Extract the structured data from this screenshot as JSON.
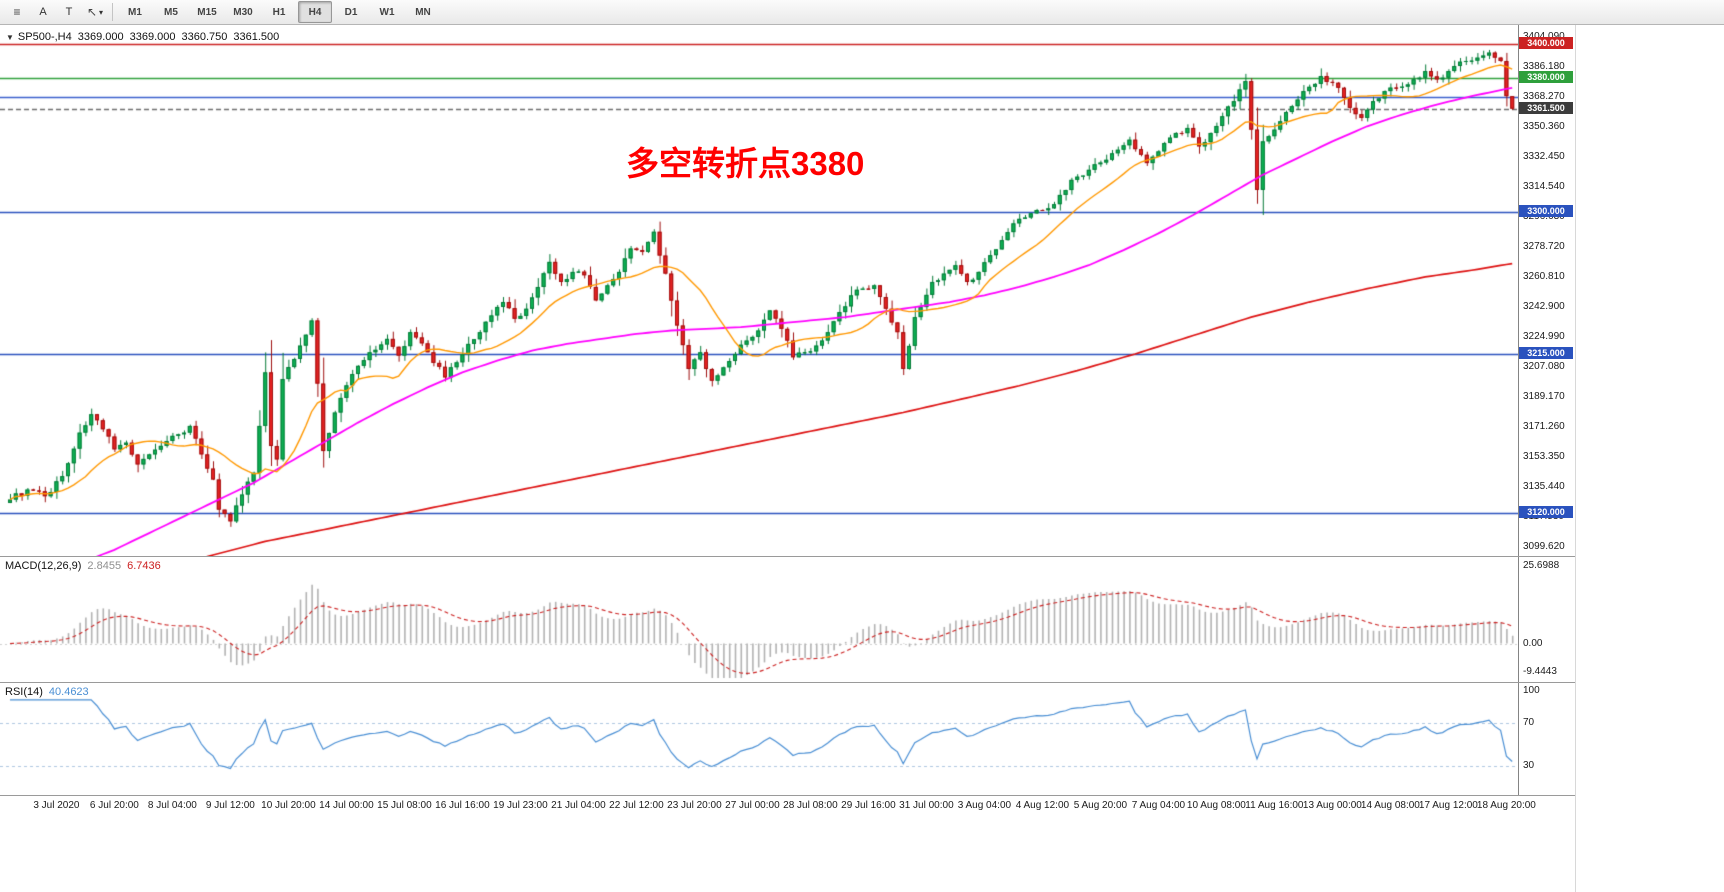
{
  "toolbar": {
    "icons": {
      "menu": "≡",
      "cursor": "↖",
      "caret": "▾"
    },
    "tools": [
      {
        "label": "A"
      },
      {
        "label": "T"
      }
    ],
    "timeframes": [
      {
        "label": "M1"
      },
      {
        "label": "M5"
      },
      {
        "label": "M15"
      },
      {
        "label": "M30"
      },
      {
        "label": "H1"
      },
      {
        "label": "H4",
        "active": true
      },
      {
        "label": "D1"
      },
      {
        "label": "W1"
      },
      {
        "label": "MN"
      }
    ]
  },
  "quote": {
    "collapse_icon": "▼",
    "symbol": "SP500-,H4",
    "open": "3369.000",
    "high": "3369.000",
    "low": "3360.750",
    "close": "3361.500"
  },
  "annotation": {
    "text": "多空转折点3380",
    "color": "#ff0000"
  },
  "chart_data": {
    "type": "candlestick",
    "symbol": "SP500-",
    "timeframe": "H4",
    "candle_count": 260,
    "colors": {
      "up": "#0db254",
      "up_border": "#067a38",
      "down": "#e62222",
      "down_border": "#9e0f0f",
      "ma_fast": "#ff9800",
      "ma_mid": "#ff00ff",
      "ma_slow": "#dd1111"
    },
    "y_axis": {
      "top_price": 3411.5,
      "bottom_price": 3094.3,
      "tick_prices": [
        3404.09,
        3386.18,
        3368.27,
        3350.36,
        3332.45,
        3314.54,
        3296.63,
        3278.72,
        3260.81,
        3242.9,
        3224.99,
        3207.08,
        3189.17,
        3171.26,
        3153.35,
        3135.44,
        3117.53,
        3099.62
      ],
      "tick_labels": [
        "3404.090",
        "3386.180",
        "3368.270",
        "3350.360",
        "3332.450",
        "3314.540",
        "3296.630",
        "3278.720",
        "3260.810",
        "3242.900",
        "3224.990",
        "3207.080",
        "3189.170",
        "3171.260",
        "3153.350",
        "3135.440",
        "3117.530",
        "3099.620"
      ]
    },
    "x_axis": {
      "indices": [
        8,
        18,
        28,
        38,
        48,
        58,
        68,
        78,
        88,
        98,
        108,
        118,
        128,
        138,
        148,
        158,
        168,
        178,
        188,
        198,
        208,
        218,
        228,
        238,
        248,
        258
      ],
      "labels": [
        "3 Jul 2020",
        "6 Jul 20:00",
        "8 Jul 04:00",
        "9 Jul 12:00",
        "10 Jul 20:00",
        "14 Jul 00:00",
        "15 Jul 08:00",
        "16 Jul 16:00",
        "19 Jul 23:00",
        "21 Jul 04:00",
        "22 Jul 12:00",
        "23 Jul 20:00",
        "27 Jul 00:00",
        "28 Jul 08:00",
        "29 Jul 16:00",
        "31 Jul 00:00",
        "3 Aug 04:00",
        "4 Aug 12:00",
        "5 Aug 20:00",
        "7 Aug 04:00",
        "10 Aug 08:00",
        "11 Aug 16:00",
        "13 Aug 00:00",
        "14 Aug 08:00",
        "17 Aug 12:00",
        "18 Aug 20:00"
      ]
    },
    "hlines": [
      {
        "price": 3400.0,
        "color": "#cc2222",
        "label": "3400.000",
        "label_bg": "#cc2222",
        "style": "solid"
      },
      {
        "price": 3380.0,
        "color": "#2fa03c",
        "label": "3380.000",
        "label_bg": "#2fa03c",
        "style": "solid"
      },
      {
        "price": 3368.5,
        "color": "#3a5fcd",
        "label": null,
        "label_bg": null,
        "style": "solid"
      },
      {
        "price": 3361.5,
        "color": "#6e6e6e",
        "label": "3361.500",
        "label_bg": "#3c3c3c",
        "style": "dash"
      },
      {
        "price": 3300.0,
        "color": "#2a52be",
        "label": "3300.000",
        "label_bg": "#2a52be",
        "style": "solid"
      },
      {
        "price": 3215.0,
        "color": "#2a52be",
        "label": "3215.000",
        "label_bg": "#2a52be",
        "style": "solid"
      },
      {
        "price": 3120.0,
        "color": "#2a52be",
        "label": "3120.000",
        "label_bg": "#2a52be",
        "style": "solid"
      }
    ],
    "close_anchors": [
      [
        0,
        3128
      ],
      [
        3,
        3134
      ],
      [
        6,
        3130
      ],
      [
        9,
        3142
      ],
      [
        12,
        3168
      ],
      [
        14,
        3179
      ],
      [
        16,
        3170
      ],
      [
        18,
        3158
      ],
      [
        20,
        3162
      ],
      [
        22,
        3149
      ],
      [
        24,
        3155
      ],
      [
        27,
        3163
      ],
      [
        29,
        3167
      ],
      [
        31,
        3172
      ],
      [
        33,
        3155
      ],
      [
        35,
        3140
      ],
      [
        36,
        3122
      ],
      [
        38,
        3115
      ],
      [
        40,
        3131
      ],
      [
        42,
        3144
      ],
      [
        43,
        3172
      ],
      [
        44,
        3204
      ],
      [
        45,
        3160
      ],
      [
        46,
        3152
      ],
      [
        47,
        3200
      ],
      [
        49,
        3212
      ],
      [
        52,
        3235
      ],
      [
        54,
        3157
      ],
      [
        56,
        3180
      ],
      [
        59,
        3203
      ],
      [
        62,
        3216
      ],
      [
        65,
        3224
      ],
      [
        67,
        3214
      ],
      [
        69,
        3228
      ],
      [
        72,
        3216
      ],
      [
        75,
        3201
      ],
      [
        77,
        3210
      ],
      [
        79,
        3221
      ],
      [
        81,
        3228
      ],
      [
        83,
        3238
      ],
      [
        85,
        3246
      ],
      [
        87,
        3236
      ],
      [
        89,
        3242
      ],
      [
        91,
        3255
      ],
      [
        93,
        3270
      ],
      [
        95,
        3258
      ],
      [
        97,
        3264
      ],
      [
        99,
        3262
      ],
      [
        101,
        3247
      ],
      [
        103,
        3256
      ],
      [
        105,
        3264
      ],
      [
        107,
        3278
      ],
      [
        109,
        3276
      ],
      [
        111,
        3288
      ],
      [
        113,
        3263
      ],
      [
        115,
        3232
      ],
      [
        117,
        3206
      ],
      [
        119,
        3216
      ],
      [
        121,
        3199
      ],
      [
        123,
        3207
      ],
      [
        125,
        3215
      ],
      [
        127,
        3223
      ],
      [
        129,
        3229
      ],
      [
        131,
        3241
      ],
      [
        133,
        3230
      ],
      [
        135,
        3213
      ],
      [
        137,
        3216
      ],
      [
        139,
        3220
      ],
      [
        141,
        3228
      ],
      [
        143,
        3240
      ],
      [
        145,
        3250
      ],
      [
        147,
        3254
      ],
      [
        149,
        3256
      ],
      [
        151,
        3242
      ],
      [
        153,
        3228
      ],
      [
        154,
        3206
      ],
      [
        156,
        3237
      ],
      [
        159,
        3258
      ],
      [
        161,
        3263
      ],
      [
        163,
        3268
      ],
      [
        165,
        3258
      ],
      [
        167,
        3264
      ],
      [
        169,
        3274
      ],
      [
        171,
        3283
      ],
      [
        173,
        3293
      ],
      [
        176,
        3299
      ],
      [
        179,
        3302
      ],
      [
        181,
        3310
      ],
      [
        183,
        3319
      ],
      [
        186,
        3325
      ],
      [
        189,
        3331
      ],
      [
        191,
        3337
      ],
      [
        193,
        3343
      ],
      [
        195,
        3334
      ],
      [
        196,
        3329
      ],
      [
        198,
        3336
      ],
      [
        199,
        3341
      ],
      [
        201,
        3347
      ],
      [
        203,
        3350
      ],
      [
        205,
        3339
      ],
      [
        207,
        3347
      ],
      [
        209,
        3357
      ],
      [
        211,
        3366
      ],
      [
        212,
        3373
      ],
      [
        213,
        3378
      ],
      [
        214,
        3349
      ],
      [
        215,
        3313
      ],
      [
        216,
        3342
      ],
      [
        218,
        3349
      ],
      [
        219,
        3354
      ],
      [
        221,
        3363
      ],
      [
        223,
        3372
      ],
      [
        226,
        3381
      ],
      [
        228,
        3377
      ],
      [
        229,
        3374
      ],
      [
        231,
        3362
      ],
      [
        233,
        3356
      ],
      [
        235,
        3366
      ],
      [
        237,
        3372
      ],
      [
        239,
        3374
      ],
      [
        241,
        3376
      ],
      [
        243,
        3380
      ],
      [
        244,
        3384
      ],
      [
        246,
        3379
      ],
      [
        248,
        3384
      ],
      [
        249,
        3387
      ],
      [
        251,
        3390
      ],
      [
        253,
        3392
      ],
      [
        255,
        3395
      ],
      [
        256,
        3392
      ],
      [
        257,
        3390
      ],
      [
        258,
        3369
      ],
      [
        259,
        3361.5
      ]
    ],
    "last_ohlc": [
      3369.0,
      3369.0,
      3360.75,
      3361.5
    ],
    "ma_lines": {
      "fast": {
        "name": "MA fast",
        "color": "#ff9800",
        "period": 14
      },
      "mid": {
        "name": "MA mid",
        "color": "#ff00ff",
        "anchors": [
          [
            0,
            3078
          ],
          [
            12,
            3090
          ],
          [
            18,
            3098
          ],
          [
            24,
            3108
          ],
          [
            30,
            3118
          ],
          [
            36,
            3128
          ],
          [
            42,
            3138
          ],
          [
            48,
            3150
          ],
          [
            54,
            3162
          ],
          [
            60,
            3174
          ],
          [
            66,
            3185
          ],
          [
            72,
            3195
          ],
          [
            78,
            3204
          ],
          [
            84,
            3211
          ],
          [
            90,
            3217
          ],
          [
            96,
            3221
          ],
          [
            102,
            3224
          ],
          [
            108,
            3227
          ],
          [
            114,
            3229
          ],
          [
            120,
            3230
          ],
          [
            126,
            3231
          ],
          [
            132,
            3233
          ],
          [
            138,
            3235
          ],
          [
            144,
            3237
          ],
          [
            150,
            3240
          ],
          [
            156,
            3243
          ],
          [
            162,
            3246
          ],
          [
            168,
            3250
          ],
          [
            174,
            3255
          ],
          [
            180,
            3261
          ],
          [
            186,
            3268
          ],
          [
            192,
            3277
          ],
          [
            198,
            3287
          ],
          [
            204,
            3298
          ],
          [
            210,
            3310
          ],
          [
            216,
            3322
          ],
          [
            222,
            3332
          ],
          [
            228,
            3342
          ],
          [
            234,
            3351
          ],
          [
            240,
            3358
          ],
          [
            246,
            3364
          ],
          [
            252,
            3369
          ],
          [
            259,
            3374
          ]
        ]
      },
      "slow": {
        "name": "MA slow",
        "color": "#dd1111",
        "anchors": [
          [
            0,
            3046
          ],
          [
            12,
            3060
          ],
          [
            24,
            3074
          ],
          [
            34,
            3094
          ],
          [
            44,
            3103
          ],
          [
            54,
            3110
          ],
          [
            64,
            3117
          ],
          [
            74,
            3124
          ],
          [
            84,
            3131
          ],
          [
            94,
            3138
          ],
          [
            104,
            3145
          ],
          [
            114,
            3152
          ],
          [
            124,
            3159
          ],
          [
            134,
            3166
          ],
          [
            144,
            3173
          ],
          [
            154,
            3180
          ],
          [
            164,
            3188
          ],
          [
            174,
            3196
          ],
          [
            184,
            3205
          ],
          [
            194,
            3215
          ],
          [
            204,
            3226
          ],
          [
            214,
            3237
          ],
          [
            224,
            3246
          ],
          [
            234,
            3254
          ],
          [
            244,
            3261
          ],
          [
            252,
            3265
          ],
          [
            259,
            3269
          ]
        ]
      }
    }
  },
  "macd": {
    "label": "MACD(12,26,9)",
    "value_main": "2.8455",
    "value_signal": "6.7436",
    "params": {
      "fast": 12,
      "slow": 26,
      "signal": 9
    },
    "range": {
      "max": 27.5,
      "min": -11.5
    },
    "axis_labels": [
      {
        "text": "25.6988",
        "value": 25.6988
      },
      {
        "text": "0.00",
        "value": 0
      },
      {
        "text": "-9.4443",
        "value": -9.4443
      }
    ],
    "colors": {
      "histogram": "#b2b2b2",
      "signal": "#cc2222",
      "value_main": "#8f8f8f"
    }
  },
  "rsi": {
    "label": "RSI(14)",
    "value": "40.4623",
    "period": 14,
    "levels": [
      70,
      30
    ],
    "range": {
      "max": 107,
      "min": 3
    },
    "axis_labels": [
      {
        "text": "100",
        "value": 100
      },
      {
        "text": "70",
        "value": 70
      },
      {
        "text": "30",
        "value": 30
      }
    ],
    "colors": {
      "line": "#4a8fd4",
      "level": "#aec7e0"
    }
  }
}
